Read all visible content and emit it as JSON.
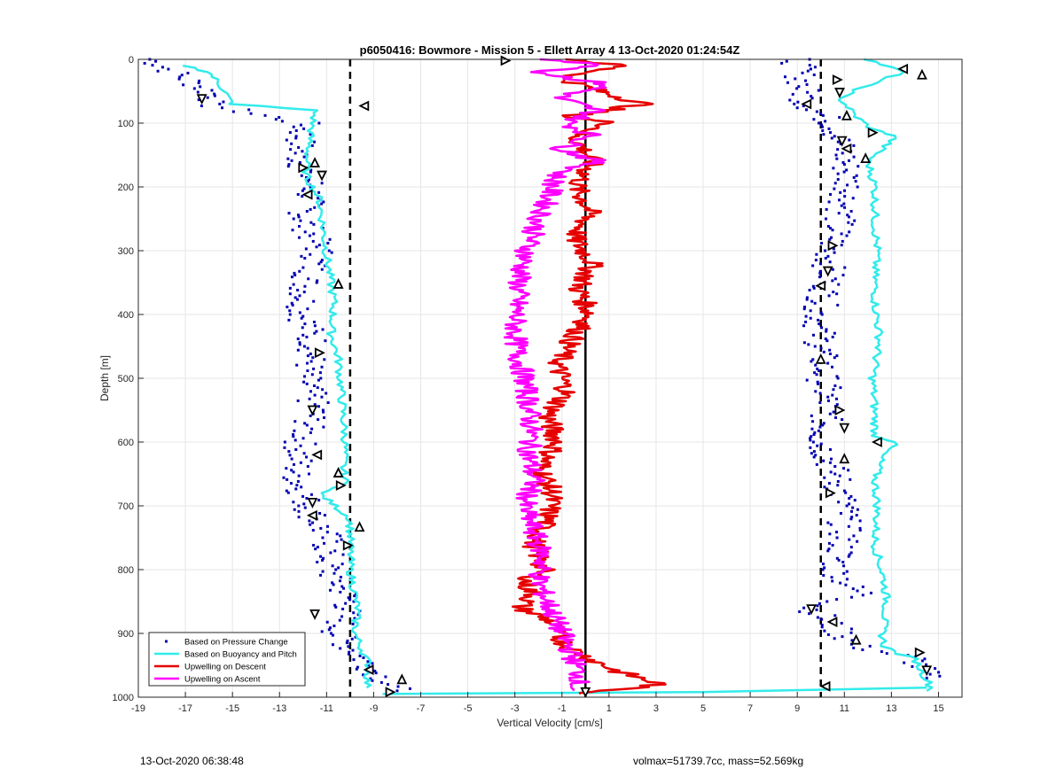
{
  "chart_data": {
    "type": "line",
    "title": "p6050416: Bowmore - Mission 5 - Ellett Array 4 13-Oct-2020 01:24:54Z",
    "xlabel": "Vertical Velocity [cm/s]",
    "ylabel": "Depth [m]",
    "xlim": [
      -19,
      16
    ],
    "ylim": [
      0,
      1000
    ],
    "y_reversed": true,
    "grid": true,
    "xticks": [
      "-19",
      "-17",
      "-15",
      "-13",
      "-11",
      "-9",
      "-7",
      "-5",
      "-3",
      "-1",
      "1",
      "3",
      "5",
      "7",
      "9",
      "11",
      "13",
      "15"
    ],
    "yticks": [
      "0",
      "100",
      "200",
      "300",
      "400",
      "500",
      "600",
      "700",
      "800",
      "900",
      "1000"
    ],
    "legend_position": "bottom-left",
    "reference_lines": [
      {
        "x": -10,
        "style": "dashed",
        "color": "#000000"
      },
      {
        "x": 0,
        "style": "solid",
        "color": "#000000"
      },
      {
        "x": 10,
        "style": "dashed",
        "color": "#000000"
      }
    ],
    "series": [
      {
        "name": "Based on Pressure Change",
        "kind": "dots",
        "color": "#0000b3",
        "profiles": [
          {
            "x": [
              -18.5,
              -16.5,
              -15.6,
              -16.2,
              -12.0,
              -12.2,
              -11.6,
              -12.0,
              -11.3,
              -11.9,
              -12.0,
              -11.5,
              -11.9,
              -11.5,
              -12.1,
              -12.3,
              -11.8,
              -11.0,
              -10.9,
              -10.0,
              -10.6,
              -9.2,
              -8.3,
              -8.0
            ],
            "y": [
              0,
              40,
              60,
              70,
              100,
              150,
              200,
              250,
              300,
              350,
              400,
              450,
              500,
              550,
              600,
              650,
              700,
              750,
              800,
              850,
              900,
              950,
              980,
              990
            ]
          },
          {
            "x": [
              9.0,
              9.4,
              10.5,
              11.0,
              11.2,
              10.8,
              10.4,
              10.3,
              9.9,
              10.0,
              10.1,
              10.3,
              10.0,
              10.6,
              11.0,
              11.0,
              10.6,
              11.3,
              12.0,
              10.8,
              9.6,
              11.5,
              14.0,
              14.5
            ],
            "y": [
              0,
              70,
              100,
              150,
              200,
              250,
              300,
              350,
              400,
              450,
              500,
              550,
              600,
              650,
              700,
              750,
              800,
              830,
              840,
              850,
              860,
              920,
              940,
              970
            ]
          }
        ]
      },
      {
        "name": "Based on Buoyancy and Pitch",
        "kind": "line",
        "color": "#33ebeb",
        "profiles": [
          {
            "x": [
              -17.0,
              -16.0,
              -15.3,
              -15.2,
              -15.0,
              -11.5,
              -11.7,
              -11.9,
              -11.3,
              -11.1,
              -10.9,
              -10.7,
              -10.8,
              -10.5,
              -10.4,
              -10.3,
              -10.2,
              -10.3,
              -10.2,
              -11.3,
              -10.0,
              -10.0,
              -10.0,
              -9.7,
              -9.8,
              -9.2,
              -9.3
            ],
            "y": [
              10,
              20,
              50,
              60,
              70,
              80,
              120,
              180,
              220,
              280,
              330,
              380,
              430,
              470,
              510,
              560,
              600,
              640,
              668,
              680,
              720,
              760,
              800,
              860,
              900,
              950,
              985
            ]
          },
          {
            "x": [
              -8.5,
              5.0,
              14.5
            ],
            "y": [
              995,
              992,
              985
            ]
          },
          {
            "x": [
              12.0,
              13.5,
              12.0,
              10.8,
              11.5,
              12.2,
              13.2,
              12.0,
              12.3,
              12.3,
              12.4,
              12.3,
              12.3,
              12.5,
              12.2,
              12.3,
              12.3,
              13.2,
              12.6,
              12.3,
              12.4,
              12.3,
              12.7,
              12.8,
              12.7,
              12.6,
              12.7,
              13.3,
              14.0,
              14.3,
              14.7,
              14.5
            ],
            "y": [
              0,
              20,
              40,
              60,
              90,
              110,
              120,
              160,
              200,
              260,
              300,
              330,
              380,
              440,
              500,
              560,
              590,
              600,
              620,
              660,
              700,
              760,
              820,
              850,
              880,
              900,
              920,
              932,
              940,
              960,
              985,
              990
            ]
          }
        ]
      },
      {
        "name": "Upwelling on Descent",
        "kind": "line",
        "color": "#e60000",
        "profiles": [
          {
            "x": [
              -0.5,
              1.5,
              -1.0,
              0.6,
              2.5,
              -0.8,
              1.2,
              -0.5,
              0.3,
              -0.4,
              0.2,
              -0.5,
              0.3,
              -0.3,
              0.2,
              -0.6,
              -1.2,
              -0.8,
              -1.6,
              -1.2,
              -1.9,
              -1.4,
              -1.6,
              -2.2,
              -1.8,
              -2.6,
              -2.2,
              -2.8,
              -1.5,
              -1.2,
              -0.8,
              0.2,
              1.4,
              3.2,
              0.8,
              -0.2
            ],
            "y": [
              0,
              10,
              30,
              50,
              70,
              90,
              100,
              120,
              160,
              200,
              240,
              280,
              320,
              360,
              400,
              440,
              480,
              520,
              560,
              600,
              640,
              680,
              720,
              760,
              800,
              820,
              840,
              860,
              880,
              900,
              920,
              940,
              960,
              980,
              990,
              995
            ]
          }
        ]
      },
      {
        "name": "Upwelling on Ascent",
        "kind": "line",
        "color": "#ff00ff",
        "profiles": [
          {
            "x": [
              -1.5,
              0.8,
              -2.0,
              1.0,
              -1.2,
              0.5,
              -0.8,
              0.3,
              -1.0,
              0.5,
              -1.2,
              -1.6,
              -2.1,
              -2.5,
              -2.8,
              -2.9,
              -3.0,
              -2.9,
              -2.6,
              -2.4,
              -2.3,
              -2.4,
              -2.2,
              -2.6,
              -2.2,
              -1.8,
              -2.0,
              -1.5,
              -1.0,
              -0.5,
              -0.2,
              -0.5
            ],
            "y": [
              0,
              10,
              20,
              40,
              60,
              80,
              100,
              120,
              140,
              160,
              180,
              220,
              260,
              300,
              340,
              380,
              420,
              460,
              500,
              540,
              580,
              620,
              660,
              700,
              740,
              780,
              820,
              860,
              900,
              940,
              970,
              990
            ]
          }
        ]
      }
    ],
    "markers": {
      "description": "Black triangle markers at profile turning points",
      "points": [
        {
          "x": -3.4,
          "y": 2
        },
        {
          "x": -16.3,
          "y": 62
        },
        {
          "x": -9.4,
          "y": 73
        },
        {
          "x": -11.5,
          "y": 162
        },
        {
          "x": -12.0,
          "y": 170
        },
        {
          "x": -11.2,
          "y": 182
        },
        {
          "x": -11.8,
          "y": 212
        },
        {
          "x": -10.5,
          "y": 352
        },
        {
          "x": -11.3,
          "y": 460
        },
        {
          "x": -11.6,
          "y": 550
        },
        {
          "x": -11.4,
          "y": 620
        },
        {
          "x": -10.5,
          "y": 648
        },
        {
          "x": -10.4,
          "y": 668
        },
        {
          "x": -11.6,
          "y": 695
        },
        {
          "x": -11.6,
          "y": 715
        },
        {
          "x": -9.6,
          "y": 733
        },
        {
          "x": -10.1,
          "y": 762
        },
        {
          "x": -11.5,
          "y": 870
        },
        {
          "x": -9.2,
          "y": 957
        },
        {
          "x": -7.8,
          "y": 972
        },
        {
          "x": -8.3,
          "y": 992
        },
        {
          "x": 0.0,
          "y": 992
        },
        {
          "x": 13.5,
          "y": 15
        },
        {
          "x": 14.3,
          "y": 24
        },
        {
          "x": 10.7,
          "y": 32
        },
        {
          "x": 10.8,
          "y": 52
        },
        {
          "x": 9.4,
          "y": 70
        },
        {
          "x": 11.1,
          "y": 88
        },
        {
          "x": 12.2,
          "y": 115
        },
        {
          "x": 10.9,
          "y": 128
        },
        {
          "x": 11.1,
          "y": 140
        },
        {
          "x": 11.9,
          "y": 155
        },
        {
          "x": 10.5,
          "y": 292
        },
        {
          "x": 10.3,
          "y": 332
        },
        {
          "x": 10.0,
          "y": 355
        },
        {
          "x": 10.0,
          "y": 470
        },
        {
          "x": 10.8,
          "y": 550
        },
        {
          "x": 11.0,
          "y": 578
        },
        {
          "x": 12.4,
          "y": 600
        },
        {
          "x": 11.0,
          "y": 626
        },
        {
          "x": 10.4,
          "y": 680
        },
        {
          "x": 9.6,
          "y": 862
        },
        {
          "x": 10.5,
          "y": 882
        },
        {
          "x": 11.5,
          "y": 910
        },
        {
          "x": 14.2,
          "y": 930
        },
        {
          "x": 14.5,
          "y": 958
        },
        {
          "x": 10.2,
          "y": 983
        }
      ]
    }
  },
  "footer": {
    "timestamp": "13-Oct-2020 06:38:48",
    "stats": "volmax=51739.7cc, mass=52.569kg"
  }
}
